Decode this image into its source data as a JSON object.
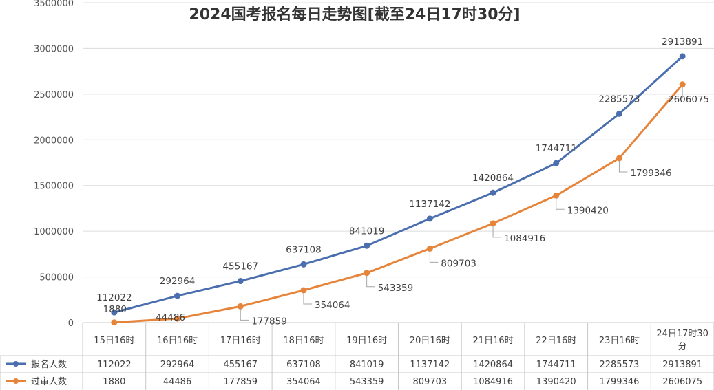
{
  "chart_data": {
    "type": "line",
    "title": "2024国考报名每日走势图[截至24日17时30分]",
    "categories": [
      "15日16时",
      "16日16时",
      "17日16时",
      "18日16时",
      "19日16时",
      "20日16时",
      "21日16时",
      "22日16时",
      "23日16时",
      "24日17时30分"
    ],
    "category_lines": [
      [
        "15日16时"
      ],
      [
        "16日16时"
      ],
      [
        "17日16时"
      ],
      [
        "18日16时"
      ],
      [
        "19日16时"
      ],
      [
        "20日16时"
      ],
      [
        "21日16时"
      ],
      [
        "22日16时"
      ],
      [
        "23日16时"
      ],
      [
        "24日17时30",
        "分"
      ]
    ],
    "ylim": [
      0,
      3500000
    ],
    "yticks": [
      0,
      500000,
      1000000,
      1500000,
      2000000,
      2500000,
      3000000,
      3500000
    ],
    "grid": true,
    "legend": "data-table",
    "series": [
      {
        "name": "报名人数",
        "color": "#4a6eae",
        "values": [
          112022,
          292964,
          455167,
          637108,
          841019,
          1137142,
          1420864,
          1744711,
          2285573,
          2913891
        ]
      },
      {
        "name": "过审人数",
        "color": "#e6843a",
        "values": [
          1880,
          44486,
          177859,
          354064,
          543359,
          809703,
          1084916,
          1390420,
          1799346,
          2606075
        ]
      }
    ]
  }
}
